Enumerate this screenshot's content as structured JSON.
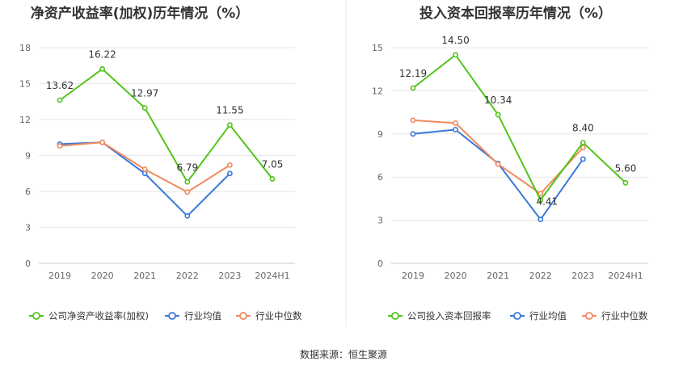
{
  "footer": "数据来源：恒生聚源",
  "chart_data": [
    {
      "type": "line",
      "title": "净资产收益率(加权)历年情况（%）",
      "categories": [
        "2019",
        "2020",
        "2021",
        "2022",
        "2023",
        "2024H1"
      ],
      "ylim": [
        0,
        18
      ],
      "yticks": [
        0,
        3,
        6,
        9,
        12,
        15,
        18
      ],
      "grid": true,
      "legend_position": "bottom",
      "series": [
        {
          "name": "公司净资产收益率(加权)",
          "color": "#52c41a",
          "values": [
            13.62,
            16.22,
            12.97,
            6.79,
            11.55,
            7.05
          ],
          "labels": [
            "13.62",
            "16.22",
            "12.97",
            "6.79",
            "11.55",
            "7.05"
          ]
        },
        {
          "name": "行业均值",
          "color": "#3a78d8",
          "values": [
            9.95,
            10.1,
            7.5,
            3.95,
            7.5,
            null
          ]
        },
        {
          "name": "行业中位数",
          "color": "#f08a5d",
          "values": [
            9.8,
            10.1,
            7.85,
            5.95,
            8.2,
            null
          ]
        }
      ]
    },
    {
      "type": "line",
      "title": "投入资本回报率历年情况（%）",
      "categories": [
        "2019",
        "2020",
        "2021",
        "2022",
        "2023",
        "2024H1"
      ],
      "ylim": [
        0,
        15
      ],
      "yticks": [
        0,
        3,
        6,
        9,
        12,
        15
      ],
      "grid": true,
      "legend_position": "bottom",
      "series": [
        {
          "name": "公司投入资本回报率",
          "color": "#52c41a",
          "values": [
            12.19,
            14.5,
            10.34,
            4.41,
            8.4,
            5.6
          ],
          "labels": [
            "12.19",
            "14.50",
            "10.34",
            "4.41",
            "8.40",
            "5.60"
          ]
        },
        {
          "name": "行业均值",
          "color": "#3a78d8",
          "values": [
            9.0,
            9.3,
            6.95,
            3.05,
            7.25,
            null
          ]
        },
        {
          "name": "行业中位数",
          "color": "#f08a5d",
          "values": [
            9.95,
            9.75,
            6.9,
            4.85,
            8.05,
            null
          ]
        }
      ]
    }
  ]
}
